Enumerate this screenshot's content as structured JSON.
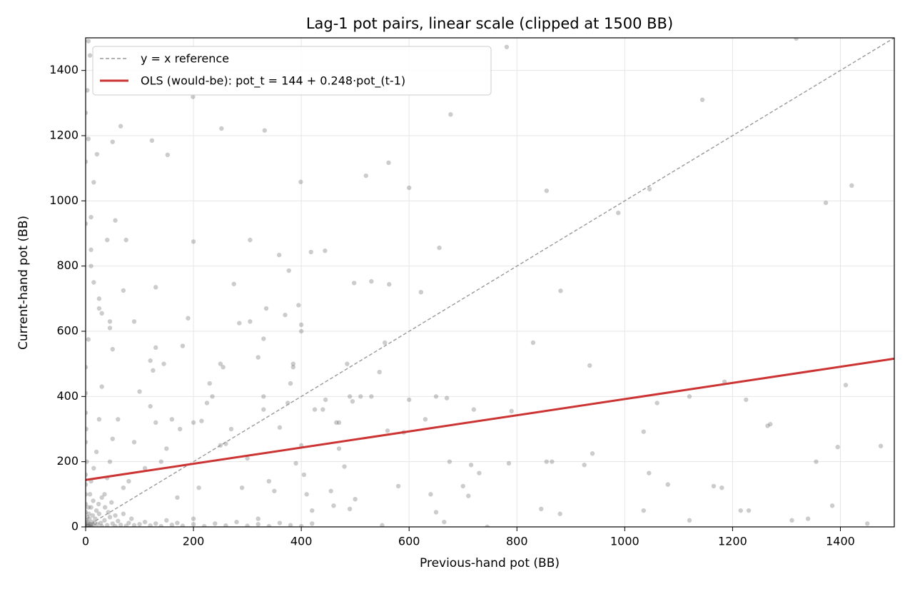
{
  "chart_data": {
    "type": "scatter",
    "title": "Lag-1 pot pairs, linear scale (clipped at 1500 BB)",
    "x_label": "Previous-hand pot (BB)",
    "y_label": "Current-hand pot (BB)",
    "xlim": [
      0,
      1500
    ],
    "ylim": [
      0,
      1500
    ],
    "xticks": [
      0,
      200,
      400,
      600,
      800,
      1000,
      1200,
      1400
    ],
    "yticks": [
      0,
      200,
      400,
      600,
      800,
      1000,
      1200,
      1400
    ],
    "grid": true,
    "legend": "upper left",
    "series": [
      {
        "kind": "point",
        "color": "#555555",
        "alpha": 0.3,
        "x": [
          1318,
          781,
          1144,
          677,
          855,
          1421,
          1373,
          988,
          1046,
          600,
          562,
          520,
          399,
          332,
          252,
          199,
          123,
          65,
          50,
          152,
          21,
          3,
          0,
          0,
          0,
          10,
          5,
          15,
          8,
          5,
          881,
          622,
          656,
          563,
          530,
          498,
          444,
          418,
          359,
          377,
          395,
          400,
          400,
          370,
          335,
          305,
          330,
          320,
          285,
          275,
          305,
          200,
          255,
          250,
          180,
          130,
          70,
          75,
          55,
          40,
          10,
          15,
          10,
          25,
          25,
          30,
          45,
          45,
          90,
          5,
          50,
          120,
          130,
          125,
          145,
          190,
          0,
          0,
          830,
          935,
          1035,
          1045,
          1060,
          1080,
          1120,
          1185,
          1180,
          1165,
          1225,
          1270,
          1265,
          1310,
          1340,
          1355,
          1385,
          1395,
          1410,
          1475,
          1450,
          1215,
          1230,
          1120,
          1035,
          940,
          925,
          865,
          855,
          880,
          845,
          790,
          785,
          720,
          730,
          715,
          700,
          710,
          745,
          650,
          670,
          630,
          640,
          650,
          665,
          675,
          600,
          580,
          590,
          560,
          545,
          555,
          550,
          530,
          510,
          490,
          470,
          480,
          470,
          465,
          485,
          495,
          490,
          500,
          460,
          455,
          440,
          445,
          425,
          400,
          390,
          405,
          410,
          420,
          380,
          385,
          385,
          360,
          375,
          330,
          330,
          340,
          350,
          320,
          300,
          290,
          270,
          260,
          250,
          235,
          230,
          225,
          215,
          210,
          200,
          200,
          175,
          170,
          160,
          150,
          140,
          130,
          120,
          110,
          100,
          90,
          80,
          70,
          60,
          50,
          45,
          40,
          35,
          30,
          25,
          20,
          15,
          10,
          8,
          5,
          3,
          0,
          2,
          5,
          8,
          12,
          15,
          18,
          22,
          25,
          28,
          30,
          35,
          40,
          45,
          50,
          55,
          60,
          65,
          70,
          75,
          80,
          85,
          90,
          100,
          110,
          120,
          130,
          140,
          150,
          160,
          170,
          180,
          200,
          220,
          240,
          260,
          280,
          300,
          320,
          340,
          360,
          380,
          400,
          420,
          0,
          0,
          0,
          0,
          0,
          0,
          2,
          0,
          1,
          0,
          6,
          10,
          14,
          20,
          24,
          30,
          36,
          42,
          48,
          55,
          4,
          7,
          9,
          13,
          17,
          1,
          3,
          6,
          11
        ],
        "values": [
          1498,
          1472,
          1310,
          1265,
          1031,
          1047,
          994,
          963,
          1036,
          1040,
          1117,
          1077,
          1058,
          1216,
          1222,
          1319,
          1185,
          1229,
          1181,
          1141,
          1143,
          1339,
          1270,
          1120,
          930,
          950,
          1190,
          1057,
          1446,
          1490,
          724,
          720,
          856,
          744,
          753,
          748,
          847,
          843,
          834,
          786,
          680,
          620,
          600,
          650,
          670,
          630,
          577,
          520,
          625,
          745,
          880,
          875,
          490,
          500,
          555,
          735,
          725,
          880,
          940,
          880,
          850,
          750,
          800,
          700,
          670,
          655,
          610,
          630,
          630,
          575,
          545,
          510,
          550,
          480,
          500,
          640,
          490,
          410,
          565,
          495,
          292,
          165,
          380,
          130,
          400,
          445,
          120,
          125,
          390,
          315,
          310,
          20,
          25,
          200,
          65,
          245,
          435,
          248,
          10,
          50,
          50,
          20,
          50,
          225,
          190,
          200,
          200,
          40,
          55,
          355,
          195,
          360,
          165,
          190,
          125,
          95,
          0,
          400,
          395,
          330,
          100,
          45,
          15,
          200,
          390,
          125,
          290,
          295,
          475,
          565,
          5,
          400,
          400,
          400,
          240,
          185,
          320,
          320,
          500,
          385,
          55,
          85,
          65,
          110,
          360,
          390,
          360,
          250,
          195,
          160,
          100,
          50,
          440,
          500,
          490,
          305,
          380,
          400,
          360,
          140,
          110,
          25,
          210,
          120,
          300,
          255,
          250,
          400,
          440,
          380,
          325,
          120,
          320,
          25,
          300,
          90,
          330,
          240,
          200,
          320,
          370,
          180,
          415,
          260,
          140,
          120,
          330,
          270,
          200,
          150,
          100,
          430,
          330,
          230,
          180,
          140,
          100,
          60,
          30,
          0,
          5,
          10,
          3,
          15,
          5,
          25,
          8,
          40,
          12,
          2,
          20,
          5,
          30,
          10,
          2,
          18,
          6,
          40,
          3,
          12,
          25,
          5,
          8,
          15,
          4,
          10,
          2,
          20,
          6,
          12,
          3,
          8,
          2,
          10,
          4,
          15,
          3,
          8,
          2,
          12,
          5,
          2,
          10,
          20,
          45,
          70,
          100,
          130,
          160,
          200,
          260,
          300,
          350,
          40,
          60,
          80,
          50,
          70,
          90,
          60,
          45,
          75,
          35,
          15,
          25,
          8,
          35,
          12,
          3,
          1,
          2,
          1
        ]
      },
      {
        "kind": "line",
        "name": "y = x reference",
        "style": "dashed",
        "color": "#999999",
        "x": [
          0,
          1500
        ],
        "values": [
          0,
          1500
        ]
      },
      {
        "kind": "line",
        "name": "OLS (would-be): pot_t = 144 + 0.248·pot_(t-1)",
        "color": "#cc3333",
        "x": [
          0,
          1500
        ],
        "values": [
          144,
          516
        ]
      }
    ]
  }
}
